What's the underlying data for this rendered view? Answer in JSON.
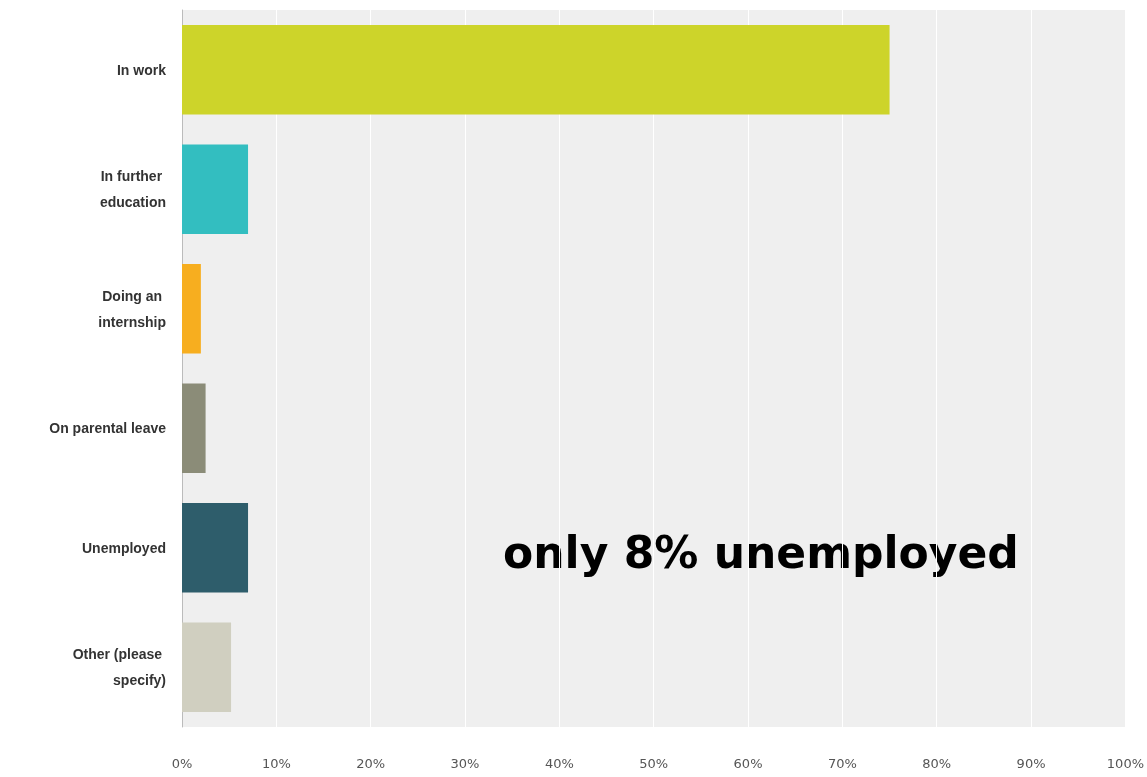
{
  "chart_data": {
    "type": "bar",
    "orientation": "horizontal",
    "categories": [
      "In work",
      "In further education",
      "Doing an internship",
      "On parental leave",
      "Unemployed",
      "Other (please specify)"
    ],
    "values": [
      75,
      7,
      2,
      2.5,
      7,
      5.2
    ],
    "colors": [
      "#cdd42a",
      "#33bec0",
      "#f7ae1f",
      "#8b8c78",
      "#2e5d6b",
      "#d0cfc0"
    ],
    "xlim": [
      0,
      100
    ],
    "xticks": [
      {
        "value": 0,
        "label": "0%"
      },
      {
        "value": 10,
        "label": "10%"
      },
      {
        "value": 20,
        "label": "20%"
      },
      {
        "value": 30,
        "label": "30%"
      },
      {
        "value": 40,
        "label": "40%"
      },
      {
        "value": 50,
        "label": "50%"
      },
      {
        "value": 60,
        "label": "60%"
      },
      {
        "value": 70,
        "label": "70%"
      },
      {
        "value": 80,
        "label": "80%"
      },
      {
        "value": 90,
        "label": "90%"
      },
      {
        "value": 100,
        "label": "100%"
      }
    ],
    "grid": "x",
    "annotations": [
      "only 8% unemployed"
    ]
  }
}
